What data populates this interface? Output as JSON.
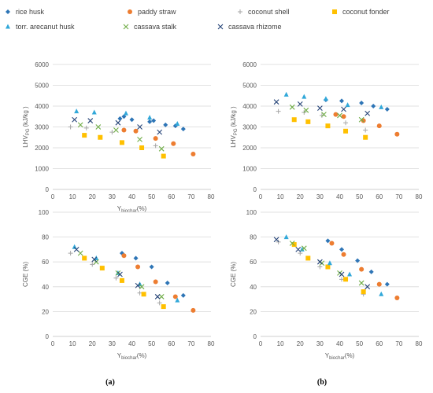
{
  "legend": {
    "entries": [
      {
        "name": "rice husk",
        "marker": "diamond",
        "color": "#2E75B6"
      },
      {
        "name": "paddy straw",
        "marker": "circle",
        "color": "#ED7D31"
      },
      {
        "name": "coconut shell",
        "marker": "plus",
        "color": "#A6A6A6"
      },
      {
        "name": "coconut fonder",
        "marker": "square",
        "color": "#FFC000"
      },
      {
        "name": "torr. arecanut husk",
        "marker": "triangle",
        "color": "#31A8D9"
      },
      {
        "name": "cassava stalk",
        "marker": "x",
        "color": "#70AD47"
      },
      {
        "name": "cassava rhizome",
        "marker": "x",
        "color": "#264478"
      }
    ]
  },
  "panels": {
    "a": "(a)",
    "b": "(b)"
  },
  "axis_labels": {
    "lhv_main": "LHV",
    "lhv_sub": "PG",
    "lhv_unit": "(kJ/kg )",
    "cge": "CGE (%)",
    "x_main": "Y",
    "x_sub": "biochar",
    "x_unit": "(%)"
  },
  "chart_data": [
    {
      "type": "scatter",
      "panel": "a",
      "ylabel": "LHV_PG (kJ/kg )",
      "xlabel": "Y_biochar(%)",
      "xlim": [
        0,
        80
      ],
      "ylim": [
        0,
        6000
      ],
      "xticks": [
        0,
        10,
        20,
        30,
        40,
        50,
        60,
        70,
        80
      ],
      "yticks": [
        0,
        1000,
        2000,
        3000,
        4000,
        5000,
        6000
      ],
      "series": [
        {
          "name": "rice husk",
          "x": [
            34,
            36,
            40,
            49,
            51,
            57,
            62,
            66
          ],
          "y": [
            3400,
            3500,
            3350,
            3250,
            3300,
            3100,
            3050,
            2900
          ]
        },
        {
          "name": "paddy straw",
          "x": [
            36,
            42,
            52,
            61,
            71
          ],
          "y": [
            2850,
            2800,
            2450,
            2200,
            1700
          ]
        },
        {
          "name": "coconut shell",
          "x": [
            9,
            17,
            30,
            52
          ],
          "y": [
            3000,
            2950,
            2750,
            2100
          ]
        },
        {
          "name": "coconut fonder",
          "x": [
            16,
            24,
            35,
            45,
            56
          ],
          "y": [
            2600,
            2500,
            2250,
            2000,
            1600
          ]
        },
        {
          "name": "torr. arecanut husk",
          "x": [
            12,
            21,
            37,
            49,
            63
          ],
          "y": [
            3750,
            3700,
            3650,
            3450,
            3150
          ]
        },
        {
          "name": "cassava stalk",
          "x": [
            14,
            23,
            32,
            44,
            55
          ],
          "y": [
            3100,
            3000,
            2850,
            2400,
            1950
          ]
        },
        {
          "name": "cassava rhizome",
          "x": [
            11,
            19,
            33,
            44,
            54
          ],
          "y": [
            3350,
            3300,
            3200,
            3000,
            2750
          ]
        }
      ]
    },
    {
      "type": "scatter",
      "panel": "b",
      "ylabel": "LHV_PG (kJ/kg )",
      "xlabel": "",
      "xlim": [
        0,
        80
      ],
      "ylim": [
        0,
        6000
      ],
      "xticks": [
        0,
        10,
        20,
        30,
        40,
        50,
        60,
        70,
        80
      ],
      "yticks": [
        0,
        1000,
        2000,
        3000,
        4000,
        5000,
        6000
      ],
      "series": [
        {
          "name": "rice husk",
          "x": [
            33,
            41,
            51,
            57,
            64
          ],
          "y": [
            4300,
            4250,
            4150,
            4000,
            3850
          ]
        },
        {
          "name": "paddy straw",
          "x": [
            38,
            42,
            52,
            60,
            69
          ],
          "y": [
            3600,
            3500,
            3300,
            3050,
            2650
          ]
        },
        {
          "name": "coconut shell",
          "x": [
            9,
            22,
            31,
            43,
            53
          ],
          "y": [
            3750,
            3700,
            3550,
            3200,
            2850
          ]
        },
        {
          "name": "coconut fonder",
          "x": [
            17,
            24,
            34,
            43,
            53
          ],
          "y": [
            3350,
            3250,
            3050,
            2800,
            2500
          ]
        },
        {
          "name": "torr. arecanut husk",
          "x": [
            13,
            22,
            33,
            44,
            61
          ],
          "y": [
            4550,
            4450,
            4350,
            4050,
            3950
          ]
        },
        {
          "name": "cassava stalk",
          "x": [
            16,
            23,
            32,
            40,
            51
          ],
          "y": [
            3950,
            3800,
            3600,
            3550,
            3350
          ]
        },
        {
          "name": "cassava rhizome",
          "x": [
            8,
            20,
            30,
            42,
            54
          ],
          "y": [
            4200,
            4100,
            3900,
            3850,
            3650
          ]
        }
      ]
    },
    {
      "type": "scatter",
      "panel": "a",
      "ylabel": "CGE (%)",
      "xlabel": "Y_biochar(%)",
      "xlim": [
        0,
        80
      ],
      "ylim": [
        0,
        100
      ],
      "xticks": [
        0,
        10,
        20,
        30,
        40,
        50,
        60,
        70,
        80
      ],
      "yticks": [
        0,
        20,
        40,
        60,
        80,
        100
      ],
      "series": [
        {
          "name": "rice husk",
          "x": [
            35,
            42,
            50,
            58,
            66
          ],
          "y": [
            67,
            63,
            56,
            43,
            33
          ]
        },
        {
          "name": "paddy straw",
          "x": [
            36,
            43,
            52,
            62,
            71
          ],
          "y": [
            65,
            56,
            44,
            32,
            21
          ]
        },
        {
          "name": "coconut shell",
          "x": [
            9,
            20,
            32,
            44,
            54
          ],
          "y": [
            67,
            58,
            47,
            35,
            27
          ]
        },
        {
          "name": "coconut fonder",
          "x": [
            16,
            25,
            35,
            46,
            56
          ],
          "y": [
            63,
            55,
            45,
            34,
            24
          ]
        },
        {
          "name": "torr. arecanut husk",
          "x": [
            11,
            22,
            33,
            44,
            63
          ],
          "y": [
            72,
            63,
            51,
            42,
            29
          ]
        },
        {
          "name": "cassava stalk",
          "x": [
            14,
            22,
            33,
            45,
            55
          ],
          "y": [
            67,
            60,
            51,
            40,
            32
          ]
        },
        {
          "name": "cassava rhizome",
          "x": [
            12,
            21,
            34,
            43,
            53
          ],
          "y": [
            70,
            62,
            50,
            41,
            32
          ]
        }
      ]
    },
    {
      "type": "scatter",
      "panel": "b",
      "ylabel": "CGE (%)",
      "xlabel": "Y_biochar(%)",
      "xlim": [
        0,
        80
      ],
      "ylim": [
        0,
        100
      ],
      "xticks": [
        0,
        10,
        20,
        30,
        40,
        50,
        60,
        70,
        80
      ],
      "yticks": [
        0,
        20,
        40,
        60,
        80,
        100
      ],
      "series": [
        {
          "name": "rice husk",
          "x": [
            34,
            41,
            49,
            56,
            64
          ],
          "y": [
            77,
            70,
            61,
            52,
            42
          ]
        },
        {
          "name": "paddy straw",
          "x": [
            36,
            42,
            51,
            60,
            69
          ],
          "y": [
            75,
            66,
            54,
            42,
            31
          ]
        },
        {
          "name": "coconut shell",
          "x": [
            9,
            20,
            30,
            41,
            52
          ],
          "y": [
            76,
            67,
            56,
            46,
            34
          ]
        },
        {
          "name": "coconut fonder",
          "x": [
            17,
            24,
            34,
            43,
            52
          ],
          "y": [
            74,
            63,
            56,
            46,
            36
          ]
        },
        {
          "name": "torr. arecanut husk",
          "x": [
            13,
            21,
            35,
            45,
            61
          ],
          "y": [
            80,
            70,
            59,
            50,
            34
          ]
        },
        {
          "name": "cassava stalk",
          "x": [
            16,
            22,
            31,
            40,
            51
          ],
          "y": [
            75,
            71,
            59,
            51,
            43
          ]
        },
        {
          "name": "cassava rhizome",
          "x": [
            8,
            19,
            30,
            41,
            54
          ],
          "y": [
            78,
            70,
            60,
            50,
            40
          ]
        }
      ]
    }
  ]
}
